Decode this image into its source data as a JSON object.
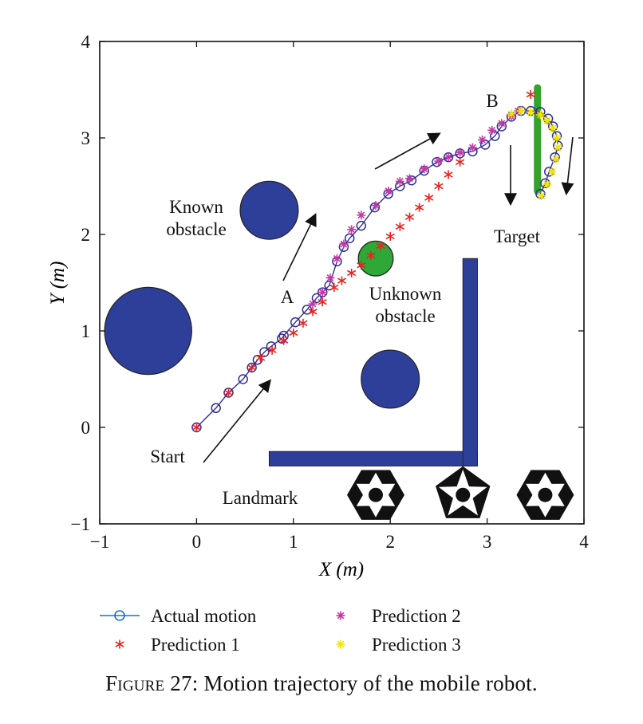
{
  "chart_data": {
    "type": "scatter",
    "xlabel": "X (m)",
    "ylabel": "Y (m)",
    "xlim": [
      -1,
      4
    ],
    "ylim": [
      -1,
      4
    ],
    "xticks": [
      "-1",
      "0",
      "1",
      "2",
      "3",
      "4"
    ],
    "yticks": [
      "-1",
      "0",
      "1",
      "2",
      "3",
      "4"
    ],
    "grid": false,
    "legend_position": "bottom",
    "series": [
      {
        "name": "Actual motion",
        "color": "#2e2e9a",
        "marker": "circle",
        "points": [
          [
            0,
            0
          ],
          [
            0.2,
            0.2
          ],
          [
            0.33,
            0.36
          ],
          [
            0.48,
            0.5
          ],
          [
            0.57,
            0.62
          ],
          [
            0.63,
            0.7
          ],
          [
            0.7,
            0.78
          ],
          [
            0.77,
            0.84
          ],
          [
            0.88,
            0.92
          ],
          [
            0.9,
            0.95
          ],
          [
            1.02,
            1.09
          ],
          [
            1.14,
            1.22
          ],
          [
            1.24,
            1.34
          ],
          [
            1.3,
            1.4
          ],
          [
            1.37,
            1.47
          ],
          [
            1.45,
            1.72
          ],
          [
            1.52,
            1.87
          ],
          [
            1.58,
            1.96
          ],
          [
            1.7,
            2.09
          ],
          [
            1.84,
            2.28
          ],
          [
            1.98,
            2.42
          ],
          [
            2.1,
            2.5
          ],
          [
            2.22,
            2.56
          ],
          [
            2.35,
            2.66
          ],
          [
            2.48,
            2.75
          ],
          [
            2.6,
            2.8
          ],
          [
            2.72,
            2.84
          ],
          [
            2.85,
            2.86
          ],
          [
            2.98,
            2.93
          ],
          [
            3.08,
            3.02
          ],
          [
            3.15,
            3.12
          ],
          [
            3.25,
            3.22
          ],
          [
            3.35,
            3.28
          ],
          [
            3.45,
            3.28
          ],
          [
            3.55,
            3.27
          ],
          [
            3.63,
            3.2
          ],
          [
            3.68,
            3.12
          ],
          [
            3.72,
            3.02
          ],
          [
            3.73,
            2.92
          ],
          [
            3.7,
            2.8
          ],
          [
            3.64,
            2.65
          ],
          [
            3.6,
            2.53
          ],
          [
            3.55,
            2.42
          ]
        ]
      },
      {
        "name": "Prediction 1",
        "color": "#e8231c",
        "marker": "star",
        "points": [
          [
            0,
            0
          ],
          [
            0.33,
            0.36
          ],
          [
            0.57,
            0.62
          ],
          [
            0.66,
            0.72
          ],
          [
            0.78,
            0.8
          ],
          [
            0.9,
            0.9
          ],
          [
            1.0,
            0.98
          ],
          [
            1.1,
            1.08
          ],
          [
            1.2,
            1.2
          ],
          [
            1.3,
            1.3
          ],
          [
            1.42,
            1.45
          ],
          [
            1.5,
            1.52
          ],
          [
            1.6,
            1.6
          ],
          [
            1.7,
            1.68
          ],
          [
            1.8,
            1.78
          ],
          [
            1.9,
            1.88
          ],
          [
            2.0,
            1.98
          ],
          [
            2.1,
            2.08
          ],
          [
            2.2,
            2.18
          ],
          [
            2.3,
            2.28
          ],
          [
            2.4,
            2.38
          ],
          [
            2.5,
            2.5
          ],
          [
            2.6,
            2.62
          ],
          [
            2.72,
            2.75
          ],
          [
            3.45,
            3.45
          ]
        ]
      },
      {
        "name": "Prediction 2",
        "color": "#c23aa3",
        "marker": "asterisk",
        "points": [
          [
            1.2,
            1.28
          ],
          [
            1.3,
            1.4
          ],
          [
            1.38,
            1.55
          ],
          [
            1.45,
            1.75
          ],
          [
            1.52,
            1.9
          ],
          [
            1.6,
            2.05
          ],
          [
            1.7,
            2.2
          ],
          [
            1.85,
            2.3
          ],
          [
            1.98,
            2.45
          ],
          [
            2.1,
            2.55
          ],
          [
            2.2,
            2.58
          ],
          [
            2.35,
            2.68
          ],
          [
            2.5,
            2.76
          ],
          [
            2.6,
            2.8
          ],
          [
            2.72,
            2.85
          ],
          [
            2.85,
            2.9
          ],
          [
            2.95,
            2.98
          ],
          [
            3.05,
            3.08
          ],
          [
            3.15,
            3.15
          ],
          [
            3.25,
            3.22
          ],
          [
            3.32,
            3.28
          ]
        ]
      },
      {
        "name": "Prediction 3",
        "color": "#f1e600",
        "marker": "asterisk",
        "points": [
          [
            3.25,
            3.25
          ],
          [
            3.35,
            3.28
          ],
          [
            3.45,
            3.27
          ],
          [
            3.55,
            3.24
          ],
          [
            3.62,
            3.18
          ],
          [
            3.68,
            3.1
          ],
          [
            3.72,
            3.0
          ],
          [
            3.73,
            2.9
          ],
          [
            3.71,
            2.78
          ],
          [
            3.67,
            2.65
          ],
          [
            3.62,
            2.52
          ],
          [
            3.56,
            2.4
          ]
        ]
      }
    ],
    "annotations": {
      "start": "Start",
      "point_a": "A",
      "point_b": "B",
      "target": "Target",
      "landmark": "Landmark",
      "known_obstacle": "Known\nobstacle",
      "unknown_obstacle": "Unknown\nobstacle"
    },
    "obstacles": [
      {
        "kind": "known",
        "x": -0.5,
        "y": 1.0,
        "r": 0.45,
        "color": "#2e3f99"
      },
      {
        "kind": "known",
        "x": 0.75,
        "y": 2.25,
        "r": 0.3,
        "color": "#2e3f99"
      },
      {
        "kind": "known",
        "x": 2.0,
        "y": 0.5,
        "r": 0.3,
        "color": "#2e3f99"
      },
      {
        "kind": "unknown",
        "x": 1.85,
        "y": 1.75,
        "r": 0.18,
        "color": "#2ea836"
      }
    ],
    "walls": [
      {
        "x1": 0.75,
        "y1": -0.25,
        "x2": 2.9,
        "y2": -0.4,
        "color": "#2e3f99"
      },
      {
        "x1": 2.75,
        "y1": -0.4,
        "x2": 2.9,
        "y2": 1.75,
        "color": "#2e3f99"
      }
    ],
    "target_bar": {
      "x": 3.52,
      "y1": 2.45,
      "y2": 3.52,
      "color": "#36a22c"
    },
    "landmarks": [
      {
        "x": 1.85,
        "y": -0.7
      },
      {
        "x": 2.75,
        "y": -0.7
      },
      {
        "x": 3.6,
        "y": -0.7
      }
    ]
  },
  "caption": {
    "label": "Figure 27:",
    "text": " Motion trajectory of the mobile robot."
  }
}
